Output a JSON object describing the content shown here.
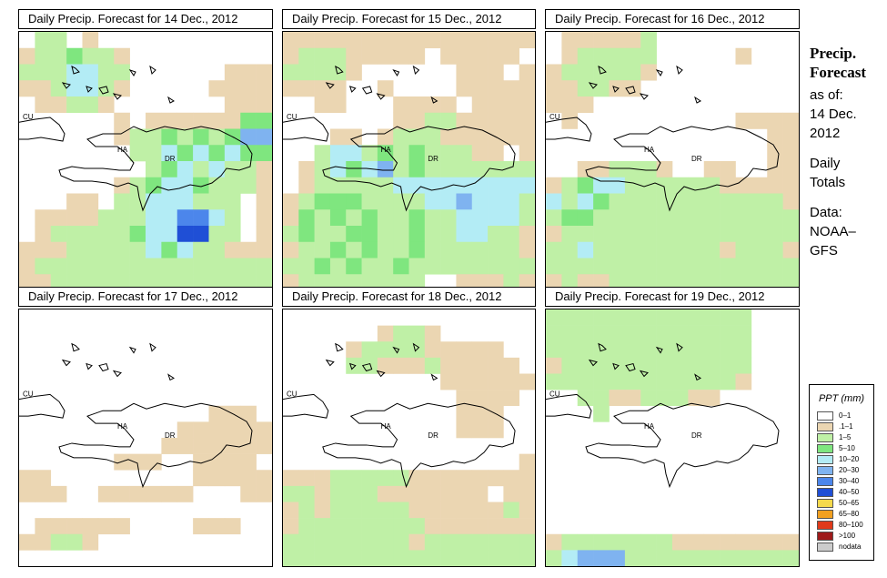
{
  "panels": [
    {
      "title": "Daily Precip. Forecast for  14 Dec., 2012",
      "pattern": "d1"
    },
    {
      "title": "Daily Precip. Forecast for  15 Dec., 2012",
      "pattern": "d2"
    },
    {
      "title": "Daily Precip. Forecast for  16 Dec., 2012",
      "pattern": "d3"
    },
    {
      "title": "Daily Precip. Forecast for  17 Dec., 2012",
      "pattern": "d4"
    },
    {
      "title": "Daily Precip. Forecast for  18 Dec., 2012",
      "pattern": "d5"
    },
    {
      "title": "Daily Precip. Forecast for  19 Dec., 2012",
      "pattern": "d6"
    }
  ],
  "map_labels": {
    "cuba": "CU",
    "haiti": "HA",
    "dominican_republic": "DR"
  },
  "side": {
    "title1": "Precip.",
    "title2": "Forecast",
    "asof": "as of:",
    "date1": "14 Dec.",
    "date2": "2012",
    "daily": "Daily",
    "totals": "Totals",
    "data_label": "Data:",
    "source1": "NOAA–",
    "source2": "GFS"
  },
  "legend": {
    "title": "PPT (mm)",
    "items": [
      {
        "label": "0–1",
        "color": "#ffffff"
      },
      {
        "label": ".1–1",
        "color": "#ebd6b2"
      },
      {
        "label": "1–5",
        "color": "#bff0a6"
      },
      {
        "label": "5–10",
        "color": "#7fe67f"
      },
      {
        "label": "10–20",
        "color": "#b3ecf5"
      },
      {
        "label": "20–30",
        "color": "#7fb3f0"
      },
      {
        "label": "30–40",
        "color": "#4c86eb"
      },
      {
        "label": "40–50",
        "color": "#1f4fd6"
      },
      {
        "label": "50–65",
        "color": "#f5d94c"
      },
      {
        "label": "65–80",
        "color": "#f2a020"
      },
      {
        "label": "80–100",
        "color": "#e03a1a"
      },
      {
        "label": ">100",
        "color": "#9e1a1a"
      },
      {
        "label": "nodata",
        "color": "#cccccc"
      }
    ]
  }
}
